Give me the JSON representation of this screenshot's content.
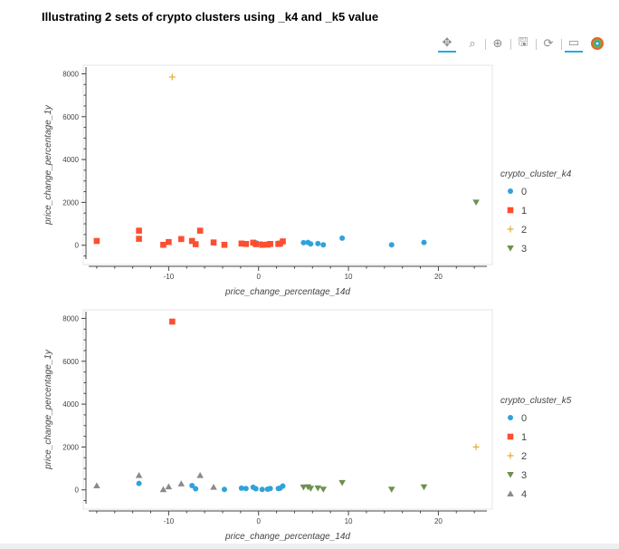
{
  "title": "Illustrating 2 sets of crypto clusters using _k4 and _k5 value",
  "toolbar": [
    {
      "name": "pan-tool-icon",
      "glyph": "✥",
      "active": true
    },
    {
      "name": "box-zoom-tool-icon",
      "glyph": "⌕",
      "active": false
    },
    {
      "name": "wheel-zoom-tool-icon",
      "glyph": "⊕",
      "active": false
    },
    {
      "name": "save-tool-icon",
      "glyph": "🖫",
      "active": false
    },
    {
      "name": "reset-tool-icon",
      "glyph": "⟳",
      "active": false
    },
    {
      "name": "hover-tool-icon",
      "glyph": "▭",
      "active": true
    },
    {
      "name": "bokeh-logo-icon",
      "glyph": "",
      "active": false
    }
  ],
  "colors": {
    "0": "#30a2da",
    "1": "#fc4f30",
    "2": "#e5ae38",
    "3": "#6d904f",
    "4": "#8b8b8b"
  },
  "chart_data": [
    {
      "type": "scatter",
      "xlabel": "price_change_percentage_14d",
      "ylabel": "price_change_percentage_1y",
      "xlim": [
        -19.5,
        26
      ],
      "ylim": [
        -900,
        8400
      ],
      "xticks": [
        -10,
        0,
        10,
        20
      ],
      "yticks": [
        0,
        2000,
        4000,
        6000,
        8000
      ],
      "legend_title": "crypto_cluster_k4",
      "legend_position": "right",
      "series": [
        {
          "name": "0",
          "marker": "circle",
          "color": "#30a2da",
          "x": [
            5.0,
            5.5,
            5.8,
            6.6,
            7.2,
            9.3,
            14.8,
            18.4,
            -0.2,
            0.3
          ],
          "y": [
            120,
            130,
            60,
            80,
            20,
            330,
            20,
            130,
            100,
            60
          ]
        },
        {
          "name": "1",
          "marker": "square",
          "color": "#fc4f30",
          "x": [
            -18.0,
            -13.3,
            -13.3,
            -10.6,
            -10.0,
            -8.6,
            -7.4,
            -7.0,
            -6.5,
            -5.0,
            -3.8,
            -1.9,
            -1.4,
            -0.6,
            -0.3,
            0.4,
            1.0,
            1.3,
            2.2,
            2.4,
            2.7
          ],
          "y": [
            200,
            680,
            300,
            20,
            150,
            290,
            200,
            50,
            680,
            130,
            20,
            80,
            60,
            120,
            50,
            20,
            30,
            60,
            60,
            80,
            180
          ]
        },
        {
          "name": "2",
          "marker": "cross",
          "color": "#e5ae38",
          "x": [
            -9.6
          ],
          "y": [
            7850
          ]
        },
        {
          "name": "3",
          "marker": "triangle-down",
          "color": "#6d904f",
          "x": [
            24.2
          ],
          "y": [
            2000
          ]
        }
      ]
    },
    {
      "type": "scatter",
      "xlabel": "price_change_percentage_14d",
      "ylabel": "price_change_percentage_1y",
      "xlim": [
        -19.5,
        26
      ],
      "ylim": [
        -900,
        8400
      ],
      "xticks": [
        -10,
        0,
        10,
        20
      ],
      "yticks": [
        0,
        2000,
        4000,
        6000,
        8000
      ],
      "legend_title": "crypto_cluster_k5",
      "legend_position": "right",
      "series": [
        {
          "name": "0",
          "marker": "circle",
          "color": "#30a2da",
          "x": [
            -13.3,
            -7.4,
            -7.0,
            -3.8,
            -1.9,
            -1.4,
            -0.6,
            -0.3,
            0.4,
            1.0,
            1.3,
            2.2,
            2.4,
            2.7
          ],
          "y": [
            300,
            200,
            50,
            20,
            80,
            60,
            120,
            50,
            20,
            30,
            60,
            60,
            80,
            180
          ]
        },
        {
          "name": "1",
          "marker": "square",
          "color": "#fc4f30",
          "x": [
            -9.6
          ],
          "y": [
            7850
          ]
        },
        {
          "name": "2",
          "marker": "cross",
          "color": "#e5ae38",
          "x": [
            24.2
          ],
          "y": [
            2000
          ]
        },
        {
          "name": "3",
          "marker": "triangle-down",
          "color": "#6d904f",
          "x": [
            5.0,
            5.5,
            5.8,
            6.6,
            7.2,
            9.3,
            14.8,
            18.4
          ],
          "y": [
            120,
            130,
            60,
            80,
            20,
            330,
            20,
            130
          ]
        },
        {
          "name": "4",
          "marker": "triangle-up",
          "color": "#8b8b8b",
          "x": [
            -18.0,
            -13.3,
            -10.6,
            -10.0,
            -8.6,
            -6.5,
            -5.0
          ],
          "y": [
            200,
            680,
            20,
            150,
            290,
            680,
            130
          ]
        }
      ]
    }
  ]
}
